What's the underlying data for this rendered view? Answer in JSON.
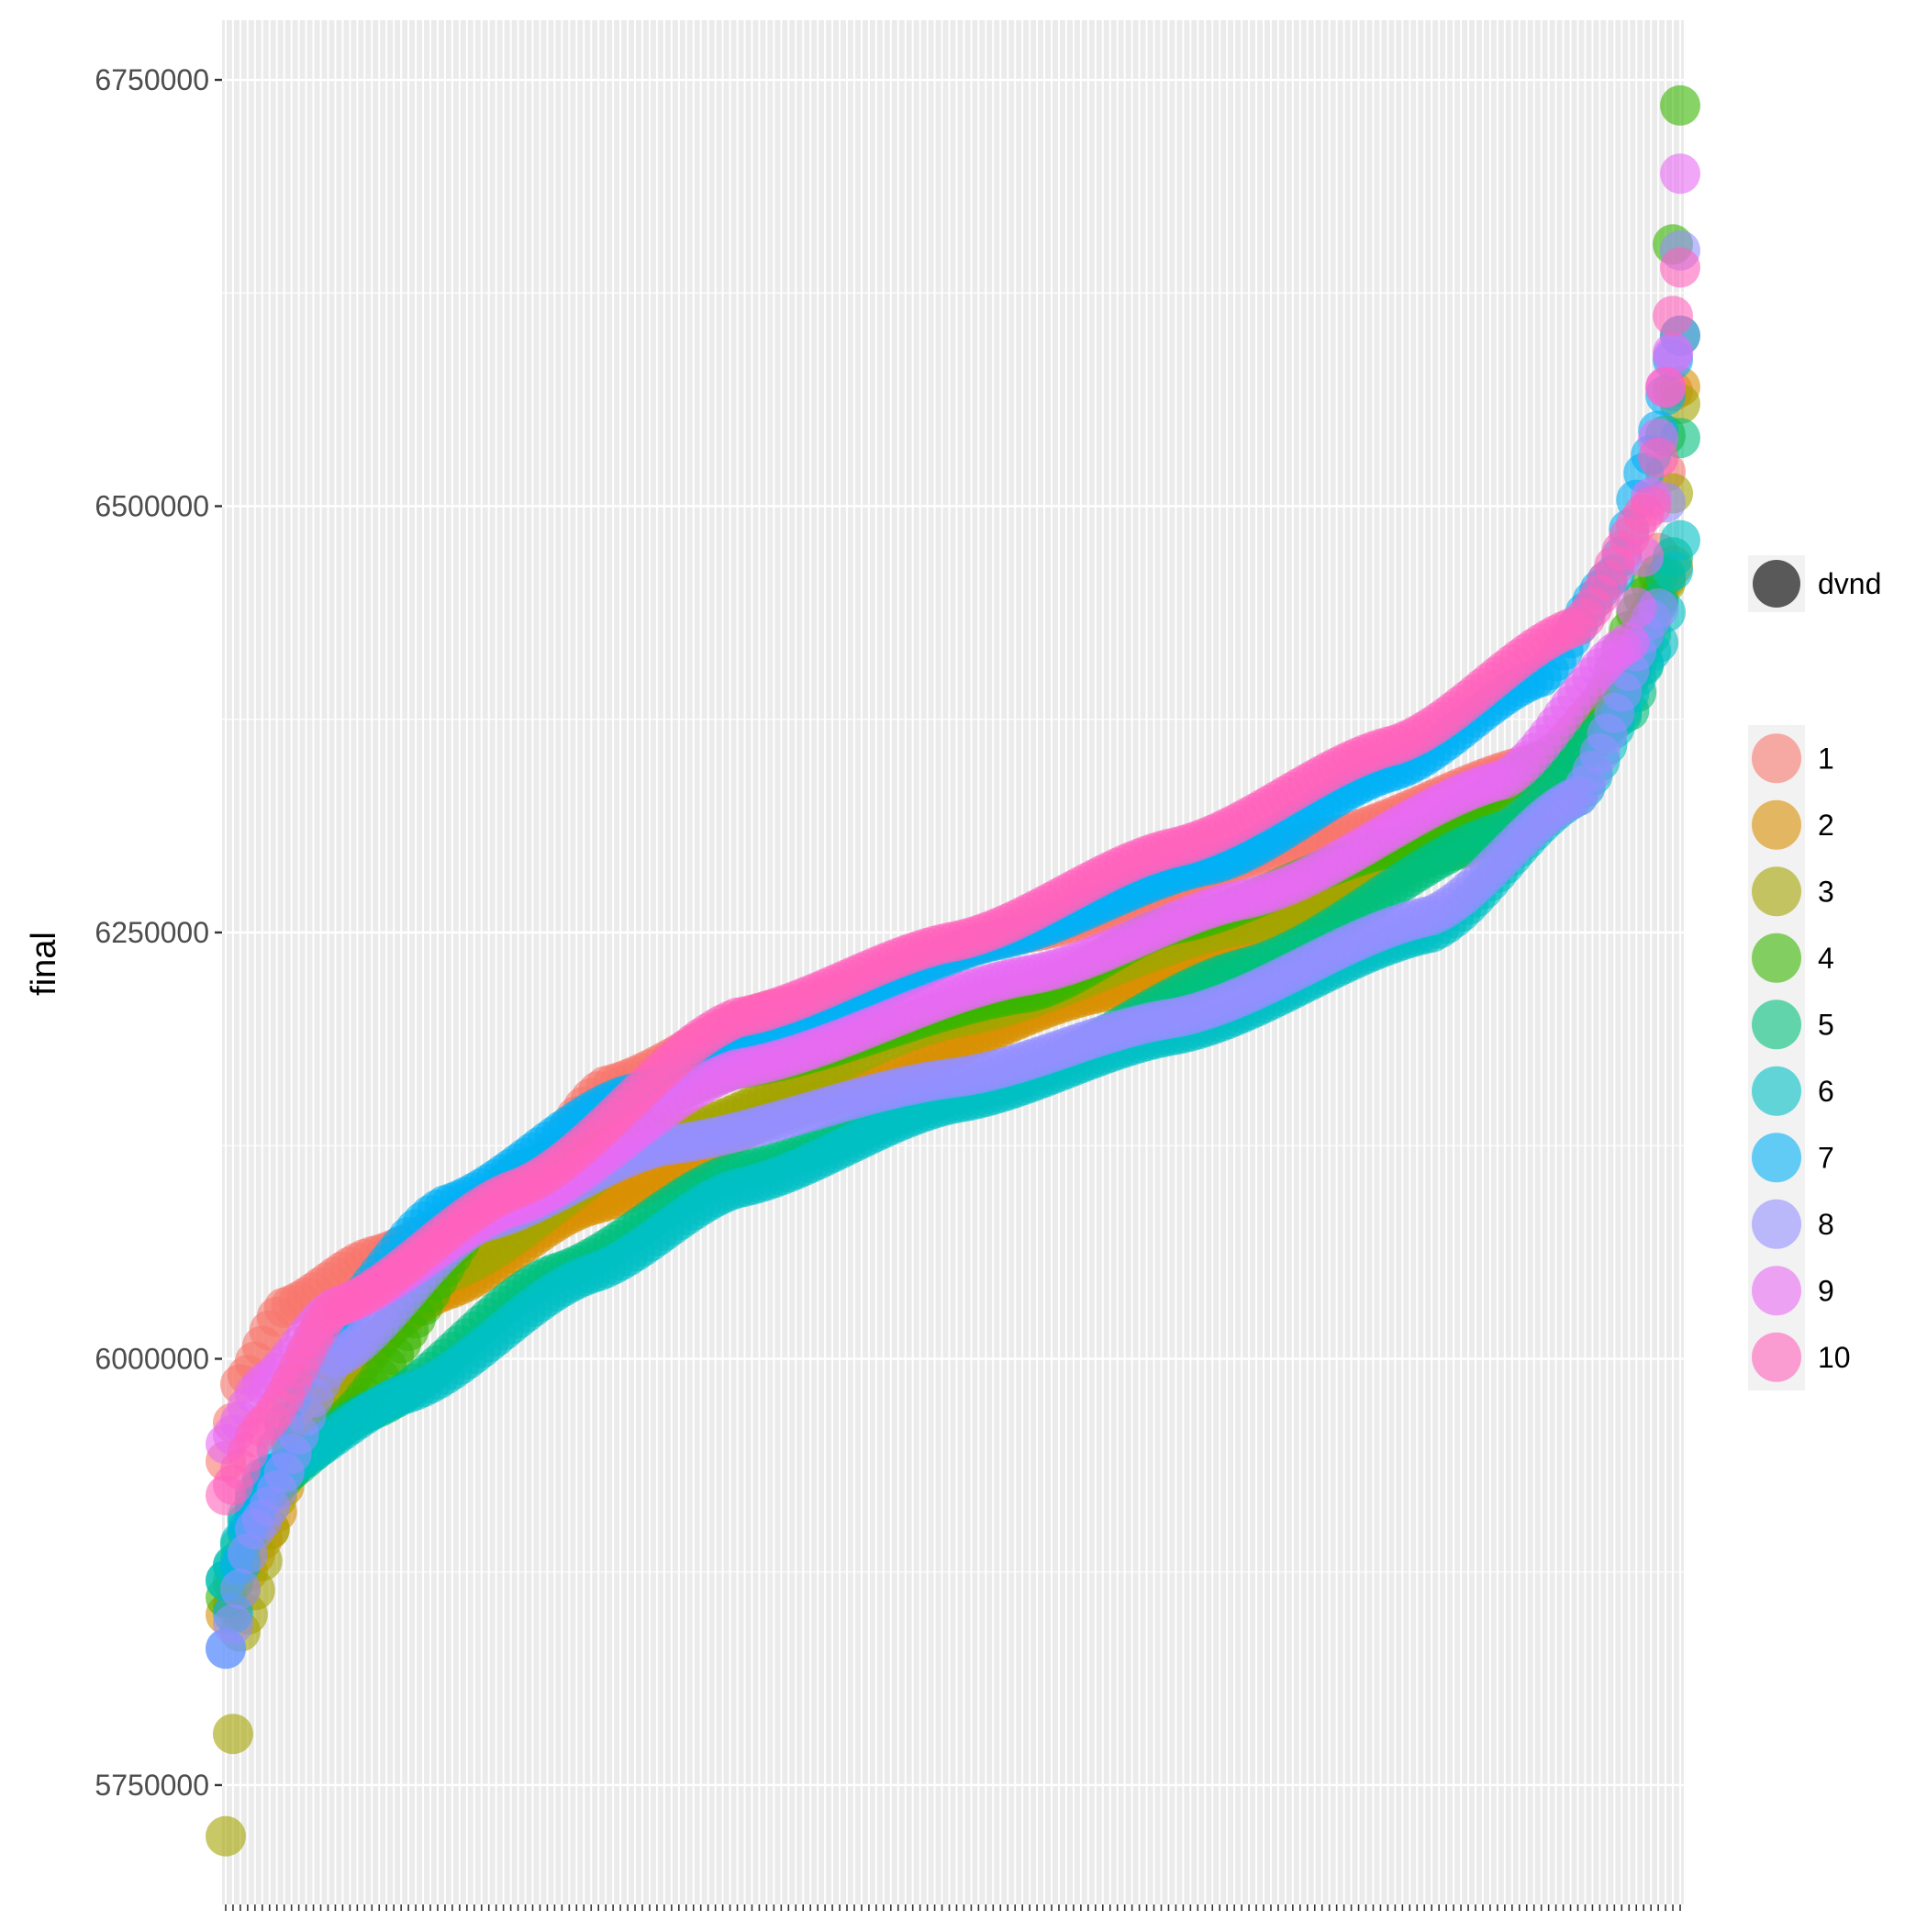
{
  "chart_data": {
    "type": "scatter",
    "title": "",
    "xlabel": "",
    "ylabel": "final",
    "x_count": 200,
    "x_tick_labels_shown": false,
    "ylim": [
      5680000,
      6785000
    ],
    "y_ticks": [
      5750000,
      6000000,
      6250000,
      6500000,
      6750000
    ],
    "y_tick_labels": [
      "5750000",
      "6000000",
      "6250000",
      "6500000",
      "6750000"
    ],
    "grid": true,
    "panel_background": "#EBEBEB",
    "marker_alpha": 0.6,
    "legend_position": "right",
    "size_legend": {
      "label": "dvnd",
      "color": "#595959"
    },
    "series": [
      {
        "name": "1",
        "color": "#F8766D",
        "knots": [
          [
            0,
            5940000
          ],
          [
            2,
            5985000
          ],
          [
            8,
            6030000
          ],
          [
            20,
            6060000
          ],
          [
            40,
            6100000
          ],
          [
            52,
            6160000
          ],
          [
            75,
            6205000
          ],
          [
            110,
            6250000
          ],
          [
            150,
            6305000
          ],
          [
            180,
            6350000
          ],
          [
            190,
            6390000
          ],
          [
            195,
            6440000
          ],
          [
            199,
            6600000
          ]
        ]
      },
      {
        "name": "2",
        "color": "#D89000",
        "knots": [
          [
            0,
            5850000
          ],
          [
            6,
            5900000
          ],
          [
            12,
            5985000
          ],
          [
            30,
            6040000
          ],
          [
            50,
            6090000
          ],
          [
            80,
            6150000
          ],
          [
            120,
            6215000
          ],
          [
            150,
            6265000
          ],
          [
            175,
            6320000
          ],
          [
            192,
            6400000
          ],
          [
            198,
            6465000
          ],
          [
            199,
            6570000
          ]
        ]
      },
      {
        "name": "3",
        "color": "#A3A500",
        "knots": [
          [
            0,
            5720000
          ],
          [
            2,
            5840000
          ],
          [
            10,
            5960000
          ],
          [
            30,
            6050000
          ],
          [
            60,
            6130000
          ],
          [
            100,
            6200000
          ],
          [
            140,
            6255000
          ],
          [
            170,
            6300000
          ],
          [
            190,
            6380000
          ],
          [
            197,
            6455000
          ],
          [
            199,
            6560000
          ]
        ]
      },
      {
        "name": "4",
        "color": "#39B600",
        "knots": [
          [
            0,
            5860000
          ],
          [
            5,
            5920000
          ],
          [
            15,
            5960000
          ],
          [
            40,
            6110000
          ],
          [
            70,
            6170000
          ],
          [
            110,
            6215000
          ],
          [
            130,
            6255000
          ],
          [
            160,
            6300000
          ],
          [
            185,
            6360000
          ],
          [
            196,
            6460000
          ],
          [
            199,
            6735000
          ]
        ]
      },
      {
        "name": "5",
        "color": "#00BF7D",
        "knots": [
          [
            0,
            5870000
          ],
          [
            5,
            5925000
          ],
          [
            20,
            5970000
          ],
          [
            45,
            6050000
          ],
          [
            70,
            6110000
          ],
          [
            105,
            6160000
          ],
          [
            140,
            6230000
          ],
          [
            175,
            6310000
          ],
          [
            192,
            6380000
          ],
          [
            198,
            6470000
          ],
          [
            199,
            6540000
          ]
        ]
      },
      {
        "name": "6",
        "color": "#00BFC4",
        "knots": [
          [
            0,
            5870000
          ],
          [
            5,
            5930000
          ],
          [
            25,
            5980000
          ],
          [
            50,
            6050000
          ],
          [
            70,
            6100000
          ],
          [
            100,
            6150000
          ],
          [
            130,
            6190000
          ],
          [
            165,
            6250000
          ],
          [
            185,
            6330000
          ],
          [
            196,
            6420000
          ],
          [
            199,
            6480000
          ]
        ]
      },
      {
        "name": "7",
        "color": "#00B0F6",
        "knots": [
          [
            0,
            5830000
          ],
          [
            3,
            5900000
          ],
          [
            12,
            6010000
          ],
          [
            30,
            6090000
          ],
          [
            55,
            6155000
          ],
          [
            80,
            6200000
          ],
          [
            105,
            6245000
          ],
          [
            135,
            6290000
          ],
          [
            160,
            6345000
          ],
          [
            180,
            6400000
          ],
          [
            190,
            6460000
          ],
          [
            195,
            6530000
          ],
          [
            199,
            6600000
          ]
        ]
      },
      {
        "name": "8",
        "color": "#9590FF",
        "knots": [
          [
            0,
            5830000
          ],
          [
            4,
            5900000
          ],
          [
            15,
            6000000
          ],
          [
            35,
            6080000
          ],
          [
            60,
            6125000
          ],
          [
            100,
            6165000
          ],
          [
            130,
            6200000
          ],
          [
            165,
            6260000
          ],
          [
            185,
            6330000
          ],
          [
            196,
            6440000
          ],
          [
            199,
            6650000
          ]
        ]
      },
      {
        "name": "9",
        "color": "#E76BF3",
        "knots": [
          [
            0,
            5950000
          ],
          [
            5,
            5985000
          ],
          [
            15,
            6030000
          ],
          [
            40,
            6090000
          ],
          [
            70,
            6170000
          ],
          [
            110,
            6225000
          ],
          [
            140,
            6270000
          ],
          [
            175,
            6340000
          ],
          [
            192,
            6420000
          ],
          [
            198,
            6590000
          ],
          [
            199,
            6695000
          ]
        ]
      },
      {
        "name": "10",
        "color": "#FF62BC",
        "knots": [
          [
            0,
            5920000
          ],
          [
            5,
            5960000
          ],
          [
            15,
            6030000
          ],
          [
            40,
            6100000
          ],
          [
            70,
            6200000
          ],
          [
            100,
            6245000
          ],
          [
            130,
            6300000
          ],
          [
            160,
            6360000
          ],
          [
            185,
            6430000
          ],
          [
            195,
            6500000
          ],
          [
            199,
            6640000
          ]
        ]
      }
    ]
  }
}
